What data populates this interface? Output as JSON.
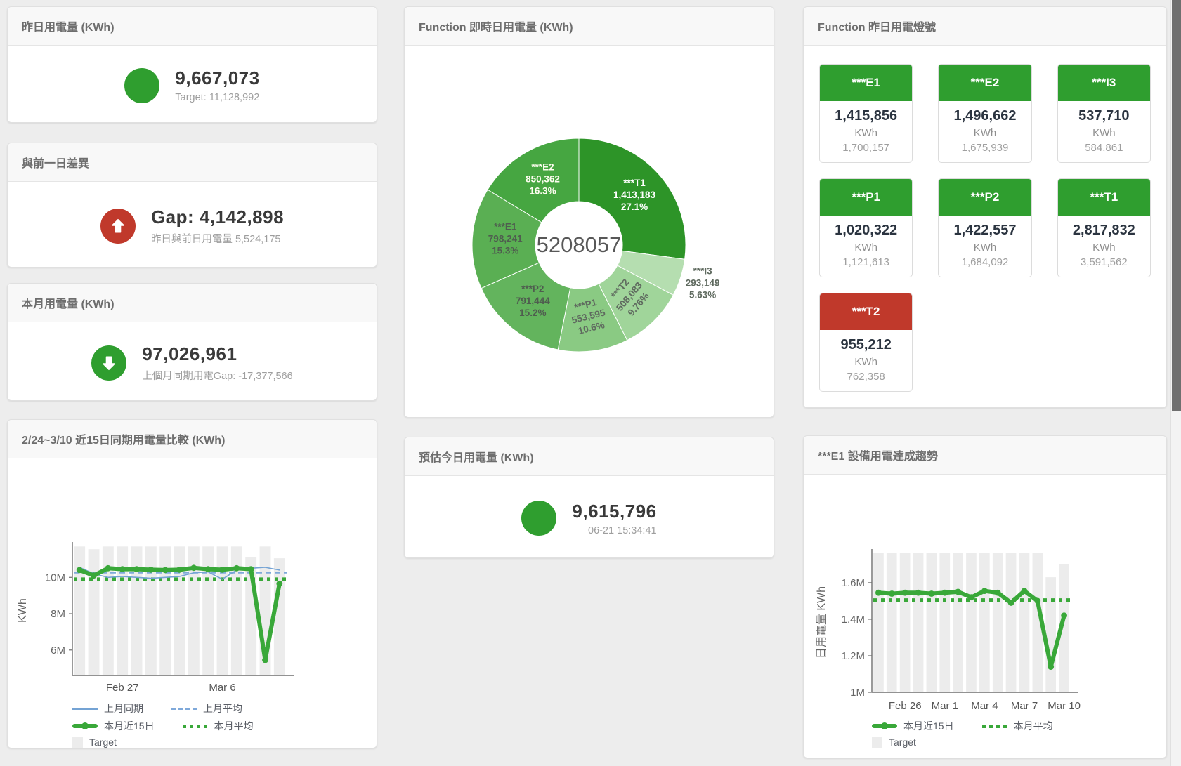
{
  "colors": {
    "green": "#2f9e2f",
    "red": "#c0392b",
    "chart_green": "#39a839",
    "chart_blue": "#74a3d4",
    "chart_blue_dashed": "#7fa9da",
    "target_bar_gray": "#ececec",
    "axis_gray": "#6e6e6e"
  },
  "cards": {
    "yesterday": {
      "title": "昨日用電量 (KWh)",
      "value": "9,667,073",
      "subtitle": "Target: 11,128,992",
      "indicator": "green-circle"
    },
    "gap": {
      "title": "與前一日差異",
      "value": "Gap: 4,142,898",
      "subtitle": "昨日與前日用電量 5,524,175",
      "indicator": "red-circle-arrow-up"
    },
    "month": {
      "title": "本月用電量 (KWh)",
      "value": "97,026,961",
      "subtitle": "上個月同期用電Gap: -17,377,566",
      "indicator": "green-circle-arrow-down"
    },
    "estimate": {
      "title": "預估今日用電量 (KWh)",
      "value": "9,615,796",
      "subtitle": "06-21 15:34:41",
      "indicator": "green-circle"
    }
  },
  "donut": {
    "title": "Function 即時日用電量 (KWh)",
    "center_total": "5208057",
    "slices": [
      {
        "name": "***T1",
        "value": "1,413,183",
        "pct_label": "27.1%",
        "pct": 27.1,
        "color": "#2d9428",
        "text": "#ffffff"
      },
      {
        "name": "***I3",
        "value": "293,149",
        "pct_label": "5.63%",
        "pct": 5.63,
        "color": "#b5deb0",
        "text": "#5f6a5f",
        "outside": true
      },
      {
        "name": "***T2",
        "value": "508,083",
        "pct_label": "9.76%",
        "pct": 9.76,
        "color": "#a0d59a",
        "text": "#5f6a5f",
        "rotate": -50
      },
      {
        "name": "***P1",
        "value": "553,595",
        "pct_label": "10.6%",
        "pct": 10.6,
        "color": "#8aca83",
        "text": "#5f6a5f",
        "rotate": -14
      },
      {
        "name": "***P2",
        "value": "791,444",
        "pct_label": "15.2%",
        "pct": 15.2,
        "color": "#63b45d",
        "text": "#4f5d4f"
      },
      {
        "name": "***E1",
        "value": "798,241",
        "pct_label": "15.3%",
        "pct": 15.3,
        "color": "#5aaf53",
        "text": "#4f5d4f"
      },
      {
        "name": "***E2",
        "value": "850,362",
        "pct_label": "16.3%",
        "pct": 16.3,
        "color": "#46a641",
        "text": "#fdfdf0"
      }
    ]
  },
  "lamp": {
    "title": "Function 昨日用電燈號",
    "unit": "KWh",
    "tiles": [
      {
        "label": "***E1",
        "value": "1,415,856",
        "prev": "1,700,157",
        "color": "#2f9e2f"
      },
      {
        "label": "***E2",
        "value": "1,496,662",
        "prev": "1,675,939",
        "color": "#2f9e2f"
      },
      {
        "label": "***I3",
        "value": "537,710",
        "prev": "584,861",
        "color": "#2f9e2f"
      },
      {
        "label": "***P1",
        "value": "1,020,322",
        "prev": "1,121,613",
        "color": "#2f9e2f"
      },
      {
        "label": "***P2",
        "value": "1,422,557",
        "prev": "1,684,092",
        "color": "#2f9e2f"
      },
      {
        "label": "***T1",
        "value": "2,817,832",
        "prev": "3,591,562",
        "color": "#2f9e2f"
      },
      {
        "label": "***T2",
        "value": "955,212",
        "prev": "762,358",
        "color": "#c0392b"
      }
    ]
  },
  "compare_chart": {
    "title": "2/24~3/10 近15日同期用電量比較 (KWh)",
    "y_label": "KWh",
    "ymin": 4.6,
    "ymax": 11.75,
    "y_ticks": [
      {
        "v": 6,
        "label": "6M"
      },
      {
        "v": 8,
        "label": "8M"
      },
      {
        "v": 10,
        "label": "10M"
      }
    ],
    "x_ticks": [
      {
        "i": 3,
        "label": "Feb 27"
      },
      {
        "i": 10,
        "label": "Mar 6"
      }
    ],
    "target": {
      "name": "Target",
      "color": "#ececec",
      "values": [
        11.7,
        11.55,
        11.7,
        11.7,
        11.7,
        11.7,
        11.7,
        11.7,
        11.7,
        11.7,
        11.7,
        11.7,
        11.1,
        11.7,
        11.05
      ]
    },
    "series": [
      {
        "name": "上月同期",
        "style": "solid",
        "color": "#74a3d4",
        "width": 1.6,
        "values": [
          10.55,
          10.2,
          10.0,
          10.05,
          10.0,
          9.95,
          10.0,
          10.05,
          10.25,
          10.3,
          9.9,
          10.4,
          10.5,
          10.55,
          10.4
        ]
      },
      {
        "name": "上月平均",
        "style": "dashed",
        "color": "#7fa9da",
        "width": 2,
        "value": 10.25
      },
      {
        "name": "本月近15日",
        "style": "solid",
        "color": "#39a839",
        "width": 6,
        "values": [
          10.4,
          10.1,
          10.5,
          10.45,
          10.45,
          10.42,
          10.4,
          10.42,
          10.52,
          10.45,
          10.42,
          10.5,
          10.45,
          5.45,
          9.65
        ]
      },
      {
        "name": "本月平均",
        "style": "dotted",
        "color": "#39a839",
        "width": 5,
        "value": 9.9
      }
    ]
  },
  "trend_chart": {
    "title": "***E1 設備用電達成趨勢",
    "y_label": "日用電量 KWh",
    "ymin": 1.0,
    "ymax": 1.765,
    "y_ticks": [
      {
        "v": 1.0,
        "label": "1M"
      },
      {
        "v": 1.2,
        "label": "1.2M"
      },
      {
        "v": 1.4,
        "label": "1.4M"
      },
      {
        "v": 1.6,
        "label": "1.6M"
      }
    ],
    "x_ticks": [
      {
        "i": 2,
        "label": "Feb 26"
      },
      {
        "i": 5,
        "label": "Mar 1"
      },
      {
        "i": 8,
        "label": "Mar 4"
      },
      {
        "i": 11,
        "label": "Mar 7"
      },
      {
        "i": 14,
        "label": "Mar 10"
      }
    ],
    "target": {
      "name": "Target",
      "color": "#ececec",
      "values": [
        1.765,
        1.765,
        1.765,
        1.765,
        1.765,
        1.765,
        1.765,
        1.765,
        1.765,
        1.765,
        1.765,
        1.765,
        1.765,
        1.63,
        1.7
      ]
    },
    "series": [
      {
        "name": "本月近15日",
        "style": "solid",
        "color": "#39a839",
        "width": 6,
        "values": [
          1.545,
          1.54,
          1.545,
          1.545,
          1.54,
          1.545,
          1.55,
          1.52,
          1.555,
          1.545,
          1.49,
          1.555,
          1.5,
          1.14,
          1.42
        ]
      },
      {
        "name": "本月平均",
        "style": "dotted",
        "color": "#39a839",
        "width": 5,
        "value": 1.505
      }
    ]
  }
}
